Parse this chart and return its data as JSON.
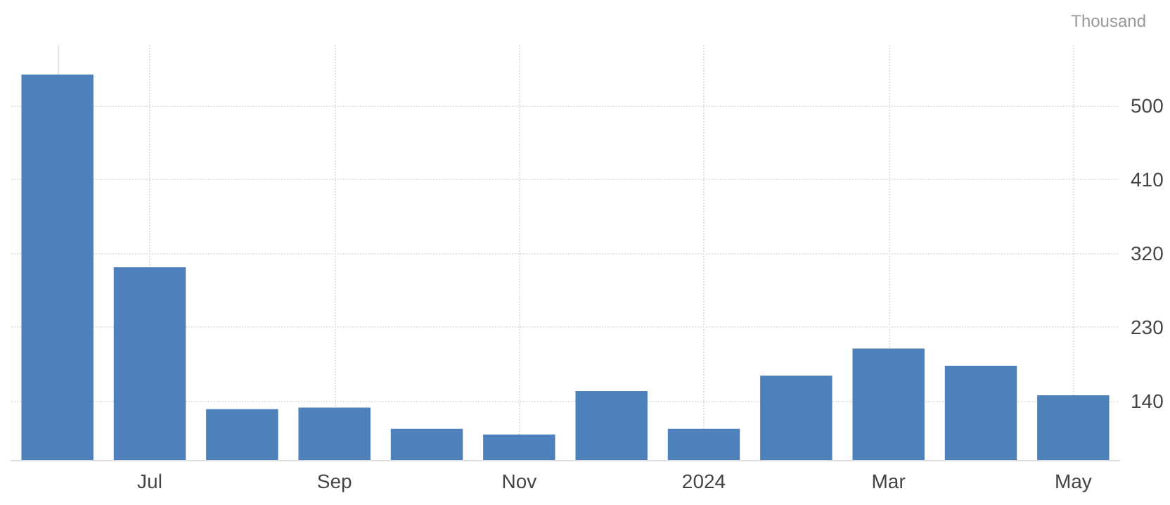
{
  "chart_data": {
    "type": "bar",
    "ylabel": "Thousand",
    "categories": [
      null,
      "Jul",
      null,
      "Sep",
      null,
      "Nov",
      null,
      "2024",
      null,
      "Mar",
      null,
      "May"
    ],
    "values": [
      538,
      303,
      130,
      132,
      106,
      99,
      152,
      106,
      171,
      204,
      183,
      147
    ],
    "color": "#4e80bc",
    "ylim": [
      68,
      574
    ],
    "yticks": [
      140,
      230,
      320,
      410,
      500
    ],
    "grid": true
  }
}
